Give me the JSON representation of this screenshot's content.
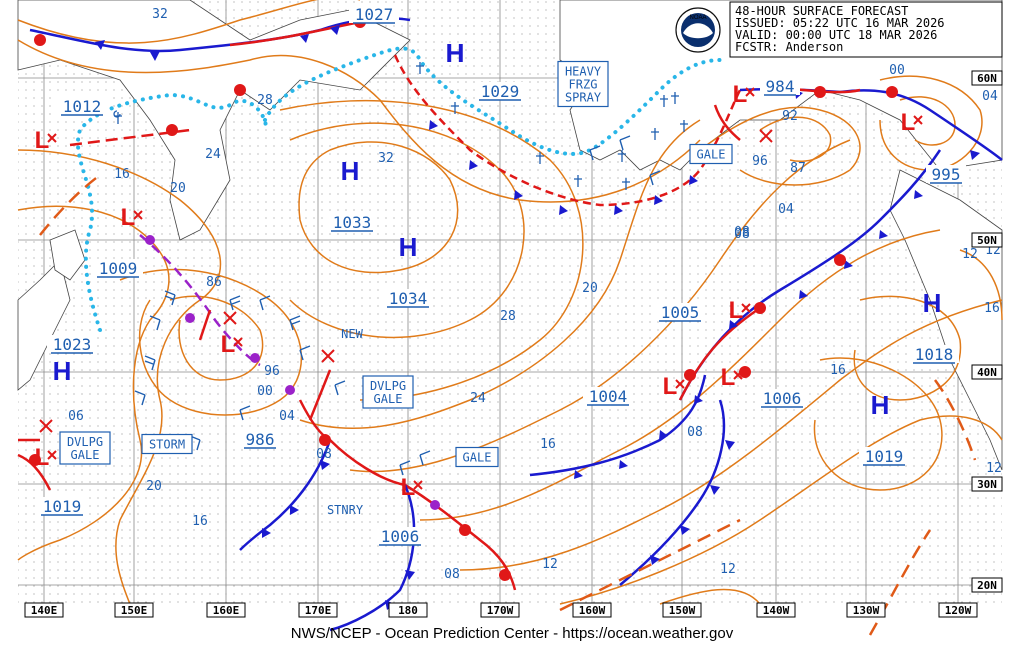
{
  "header": {
    "lines": [
      {
        "key": "48-HOUR SURFACE FORECAST",
        "val": ""
      },
      {
        "key": "ISSUED:",
        "val": "05:22 UTC 16 MAR 2026"
      },
      {
        "key": "VALID:",
        "val": "00:00 UTC 18 MAR 2026"
      },
      {
        "key": "FCSTR:",
        "val": "Anderson"
      }
    ],
    "logo_text": "NOAA"
  },
  "credit": "NWS/NCEP - Ocean Prediction Center - https://ocean.weather.gov",
  "lon_labels": [
    "140E",
    "150E",
    "160E",
    "170E",
    "180",
    "170W",
    "160W",
    "150W",
    "140W",
    "130W",
    "120W"
  ],
  "lat_labels": [
    "60N",
    "50N",
    "40N",
    "30N",
    "20N"
  ],
  "pressure_systems": [
    {
      "type": "H",
      "value": "1027"
    },
    {
      "type": "H",
      "value": "1029"
    },
    {
      "type": "H",
      "value": "1033"
    },
    {
      "type": "H",
      "value": "1034"
    },
    {
      "type": "H",
      "value": "1023"
    },
    {
      "type": "H",
      "value": "1018"
    },
    {
      "type": "H",
      "value": "1019"
    },
    {
      "type": "L",
      "value": "1012"
    },
    {
      "type": "L",
      "value": "1009"
    },
    {
      "type": "L",
      "value": "986"
    },
    {
      "type": "L",
      "value": "1019"
    },
    {
      "type": "L",
      "value": "1006"
    },
    {
      "type": "L",
      "value": "1005"
    },
    {
      "type": "L",
      "value": "1006"
    },
    {
      "type": "L",
      "value": "984"
    },
    {
      "type": "L",
      "value": "995"
    },
    {
      "type": "L",
      "value": "1004"
    }
  ],
  "warnings": [
    "HEAVY\nFRZG\nSPRAY",
    "GALE",
    "DVLPG\nGALE",
    "STORM",
    "DVLPG\nGALE",
    "GALE"
  ],
  "text_labels": [
    "NEW",
    "STNRY"
  ],
  "isobar_labels": [
    "32",
    "28",
    "24",
    "20",
    "16",
    "32",
    "28",
    "24",
    "20",
    "16",
    "12",
    "08",
    "04",
    "00",
    "96",
    "92",
    "87",
    "86",
    "04",
    "00",
    "96",
    "08",
    "08",
    "06",
    "12",
    "16",
    "08",
    "12",
    "12",
    "16",
    "12",
    "08",
    "20",
    "16",
    "04"
  ],
  "colors": {
    "isobar": "#e07b1a",
    "cold_front": "#1a1acf",
    "warm_front": "#e01818",
    "occluded": "#9b22c9",
    "ice": "#29b6e8",
    "low": "#e01818",
    "high": "#1a1acf",
    "label": "#1f5fb0"
  }
}
